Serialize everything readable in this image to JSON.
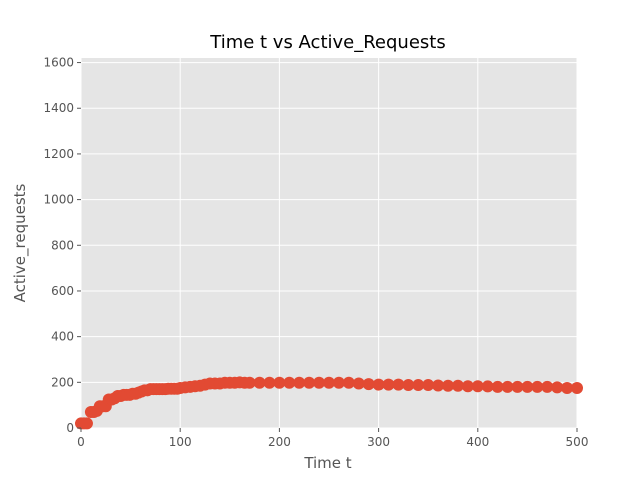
{
  "chart_data": {
    "type": "scatter",
    "title": "Time t vs Active_Requests",
    "xlabel": "Time t",
    "ylabel": "Active_requests",
    "xlim": [
      0,
      500
    ],
    "ylim": [
      0,
      1620
    ],
    "xticks": [
      0,
      100,
      200,
      300,
      400,
      500
    ],
    "yticks": [
      0,
      200,
      400,
      600,
      800,
      1000,
      1200,
      1400,
      1600
    ],
    "grid": true,
    "legend": "none",
    "colors": {
      "marker": "#e24a33",
      "plot_background": "#e5e5e5",
      "grid": "#ffffff"
    },
    "points": {
      "x": [
        0,
        3,
        6,
        10,
        13,
        16,
        19,
        22,
        25,
        28,
        31,
        34,
        37,
        40,
        43,
        46,
        49,
        52,
        55,
        58,
        61,
        64,
        67,
        70,
        73,
        76,
        79,
        82,
        85,
        88,
        91,
        94,
        97,
        100,
        105,
        110,
        115,
        120,
        125,
        130,
        135,
        140,
        145,
        150,
        155,
        160,
        165,
        170,
        180,
        190,
        200,
        210,
        220,
        230,
        240,
        250,
        260,
        270,
        280,
        290,
        300,
        310,
        320,
        330,
        340,
        350,
        360,
        370,
        380,
        390,
        400,
        410,
        420,
        430,
        440,
        450,
        460,
        470,
        480,
        490,
        500
      ],
      "y": [
        20,
        20,
        20,
        70,
        70,
        75,
        95,
        95,
        95,
        125,
        125,
        130,
        140,
        140,
        145,
        145,
        145,
        150,
        150,
        155,
        160,
        165,
        165,
        170,
        170,
        170,
        170,
        170,
        170,
        172,
        172,
        172,
        172,
        175,
        178,
        180,
        183,
        185,
        190,
        195,
        195,
        195,
        198,
        198,
        198,
        200,
        198,
        198,
        198,
        198,
        198,
        198,
        198,
        198,
        198,
        198,
        198,
        198,
        195,
        192,
        190,
        190,
        190,
        188,
        188,
        188,
        186,
        185,
        185,
        183,
        183,
        182,
        180,
        180,
        180,
        180,
        180,
        180,
        178,
        175,
        175
      ]
    }
  }
}
